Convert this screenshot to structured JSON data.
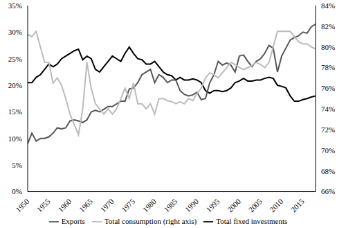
{
  "chart_data": {
    "type": "line",
    "x": [
      1950,
      1951,
      1952,
      1953,
      1954,
      1955,
      1956,
      1957,
      1958,
      1959,
      1960,
      1961,
      1962,
      1963,
      1964,
      1965,
      1966,
      1967,
      1968,
      1969,
      1970,
      1971,
      1972,
      1973,
      1974,
      1975,
      1976,
      1977,
      1978,
      1979,
      1980,
      1981,
      1982,
      1983,
      1984,
      1985,
      1986,
      1987,
      1988,
      1989,
      1990,
      1991,
      1992,
      1993,
      1994,
      1995,
      1996,
      1997,
      1998,
      1999,
      2000,
      2001,
      2002,
      2003,
      2004,
      2005,
      2006,
      2007,
      2008,
      2009,
      2010,
      2011,
      2012,
      2013,
      2014,
      2015,
      2016,
      2017,
      2018
    ],
    "xlim": [
      1950,
      2018
    ],
    "xticks": [
      1950,
      1955,
      1960,
      1965,
      1970,
      1975,
      1980,
      1985,
      1990,
      1995,
      2000,
      2005,
      2010,
      2015
    ],
    "ylim": [
      0,
      35
    ],
    "yticks": [
      {
        "value": 0,
        "label": "0%"
      },
      {
        "value": 5,
        "label": "5%"
      },
      {
        "value": 10,
        "label": "10%"
      },
      {
        "value": 15,
        "label": "15%"
      },
      {
        "value": 20,
        "label": "20%"
      },
      {
        "value": 25,
        "label": "25%"
      },
      {
        "value": 30,
        "label": "30%"
      },
      {
        "value": 35,
        "label": "35%"
      }
    ],
    "y2lim": [
      66,
      84
    ],
    "y2ticks": [
      {
        "value": 66,
        "label": "66%"
      },
      {
        "value": 68,
        "label": "68%"
      },
      {
        "value": 70,
        "label": "70%"
      },
      {
        "value": 72,
        "label": "72%"
      },
      {
        "value": 74,
        "label": "74%"
      },
      {
        "value": 76,
        "label": "76%"
      },
      {
        "value": 78,
        "label": "78%"
      },
      {
        "value": 80,
        "label": "80%"
      },
      {
        "value": 82,
        "label": "82%"
      },
      {
        "value": 84,
        "label": "84%"
      }
    ],
    "grid": false,
    "legend": "bottom",
    "series": [
      {
        "name": "Total fixed investments",
        "color": "#000000",
        "values": [
          20.5,
          20.5,
          21.5,
          22,
          23,
          24,
          23.5,
          24,
          25,
          25.5,
          26,
          26.5,
          26.8,
          24.8,
          25.5,
          25,
          23,
          22.5,
          23.5,
          24.5,
          25.5,
          25,
          24.5,
          26,
          27.2,
          26,
          25,
          24.8,
          24,
          24,
          24.5,
          23.5,
          22.5,
          22,
          21.8,
          21,
          21.5,
          21,
          21,
          21.2,
          21,
          20.5,
          19,
          18.5,
          19,
          19,
          18.8,
          19,
          19.5,
          20.5,
          20.8,
          21.3,
          20.8,
          20.8,
          21,
          21,
          21.3,
          21.5,
          21.3,
          20,
          19.8,
          19.5,
          18,
          17,
          17,
          17.3,
          17.5,
          17.8,
          18
        ]
      },
      {
        "name": "Exports",
        "color": "#555555",
        "values": [
          9,
          11,
          9.5,
          10,
          10,
          10.3,
          11,
          12,
          11.8,
          12,
          13.3,
          13.5,
          13.3,
          13,
          13.5,
          15,
          15.3,
          15,
          15.5,
          16,
          16,
          16.5,
          17,
          17,
          19.3,
          19.5,
          20.5,
          22,
          22.5,
          23,
          20.5,
          22,
          21.5,
          20.5,
          21,
          21,
          19,
          18.3,
          18,
          18.2,
          18.7,
          17.3,
          17.5,
          20.5,
          22,
          24.5,
          23.8,
          24.2,
          23.8,
          22.5,
          25.5,
          25.7,
          24.5,
          23.5,
          24.5,
          25,
          26,
          27.5,
          27,
          22.5,
          25.5,
          27,
          28.5,
          29,
          29.3,
          30,
          29.8,
          31,
          31.5
        ]
      },
      {
        "name": "Total consumption (right axis)",
        "color": "#bbbbbb",
        "axis": "y2",
        "values": [
          81.2,
          81,
          81.5,
          80,
          78.5,
          78.5,
          76.5,
          77,
          76.3,
          75,
          73.5,
          72.5,
          71.5,
          74,
          78.5,
          76,
          74.5,
          74,
          73.5,
          74,
          73.5,
          74,
          75,
          76,
          75,
          76.5,
          74.5,
          74.5,
          74,
          74.5,
          73.5,
          75,
          75,
          74.8,
          74.7,
          74.5,
          74.7,
          74.5,
          75,
          74.8,
          75.5,
          76,
          77,
          77.5,
          77.3,
          77,
          77.5,
          78,
          78.5,
          78.3,
          78,
          77.8,
          78,
          78.2,
          78.5,
          78.3,
          78,
          78.5,
          80,
          81.5,
          81.5,
          81.5,
          81.5,
          81,
          80.5,
          80.3,
          80.3,
          80,
          79.8
        ]
      }
    ]
  }
}
